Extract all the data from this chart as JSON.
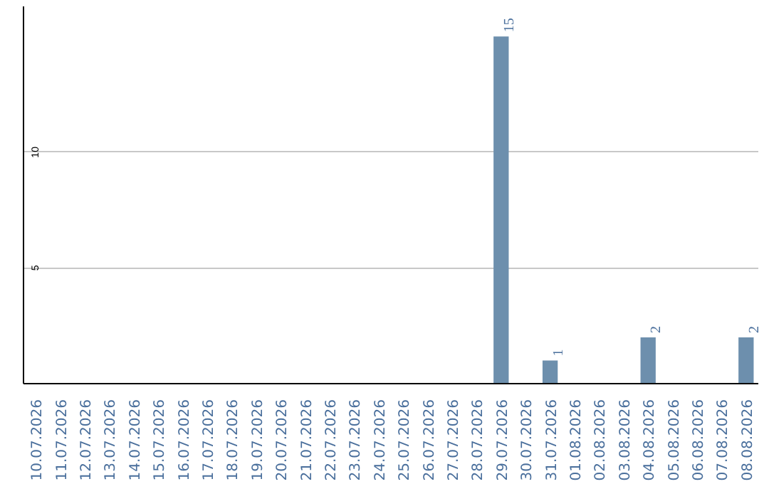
{
  "chart_data": {
    "type": "bar",
    "categories": [
      "10.07.2026",
      "11.07.2026",
      "12.07.2026",
      "13.07.2026",
      "14.07.2026",
      "15.07.2026",
      "16.07.2026",
      "17.07.2026",
      "18.07.2026",
      "19.07.2026",
      "20.07.2026",
      "21.07.2026",
      "22.07.2026",
      "23.07.2026",
      "24.07.2026",
      "25.07.2026",
      "26.07.2026",
      "27.07.2026",
      "28.07.2026",
      "29.07.2026",
      "30.07.2026",
      "31.07.2026",
      "01.08.2026",
      "02.08.2026",
      "03.08.2026",
      "04.08.2026",
      "05.08.2026",
      "06.08.2026",
      "07.08.2026",
      "08.08.2026"
    ],
    "values": [
      0,
      0,
      0,
      0,
      0,
      0,
      0,
      0,
      0,
      0,
      0,
      0,
      0,
      0,
      0,
      0,
      0,
      0,
      0,
      15,
      0,
      1,
      0,
      0,
      0,
      2,
      0,
      0,
      0,
      2
    ],
    "value_labels": [
      null,
      null,
      null,
      null,
      null,
      null,
      null,
      null,
      null,
      null,
      null,
      null,
      null,
      null,
      null,
      null,
      null,
      null,
      null,
      "15",
      null,
      "1",
      null,
      null,
      null,
      "2",
      null,
      null,
      null,
      "2"
    ],
    "color": "#6d8fad",
    "ylim": [
      0,
      16.3
    ],
    "yticks": [
      5,
      10
    ],
    "grid": "y"
  }
}
